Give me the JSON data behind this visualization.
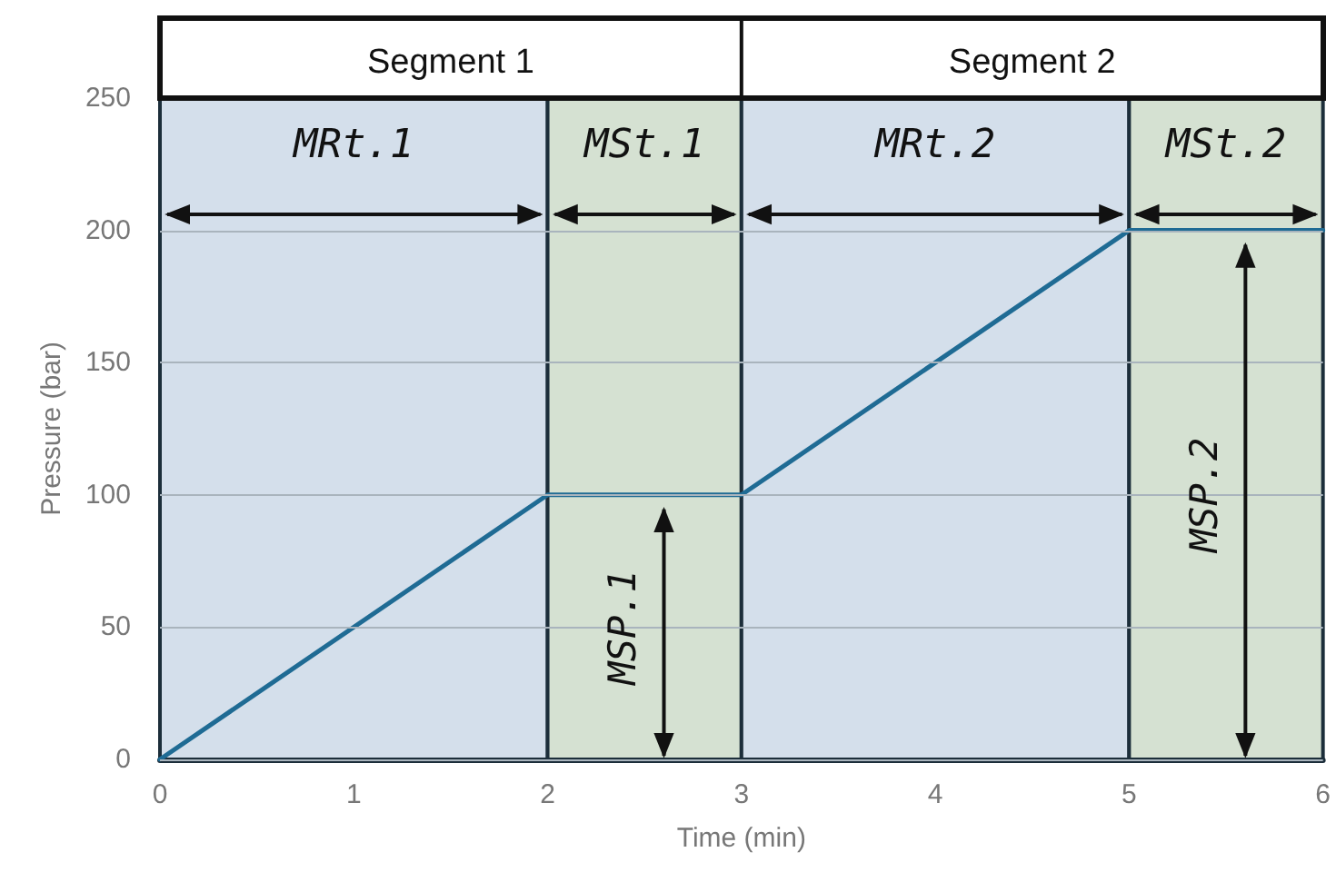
{
  "chart_data": {
    "type": "line",
    "xlabel": "Time (min)",
    "ylabel": "Pressure (bar)",
    "x": [
      0,
      2,
      3,
      5,
      6
    ],
    "series": [
      {
        "color": "#1f6b94",
        "values": [
          0,
          100,
          100,
          200,
          200
        ]
      }
    ],
    "xlim": [
      0,
      6
    ],
    "xticks": [
      0,
      1,
      2,
      3,
      4,
      5,
      6
    ],
    "ylim": [
      0,
      250
    ],
    "yticks": [
      0,
      50,
      100,
      150,
      200,
      250
    ],
    "grid": "y",
    "marker": "none",
    "line_style": "solid",
    "bands": [
      {
        "axis": "x",
        "from": 0,
        "to": 2,
        "label": "MRt.1",
        "color": "#d4dfeb"
      },
      {
        "axis": "x",
        "from": 2,
        "to": 3,
        "label": "MSt.1",
        "color": "#d5e1d2"
      },
      {
        "axis": "x",
        "from": 3,
        "to": 5,
        "label": "MRt.2",
        "color": "#d4dfeb"
      },
      {
        "axis": "x",
        "from": 5,
        "to": 6,
        "label": "MSt.2",
        "color": "#d5e1d2"
      }
    ],
    "annotations": [
      "Segment 1",
      "Segment 2",
      "MSP.1",
      "MSP.2"
    ]
  }
}
